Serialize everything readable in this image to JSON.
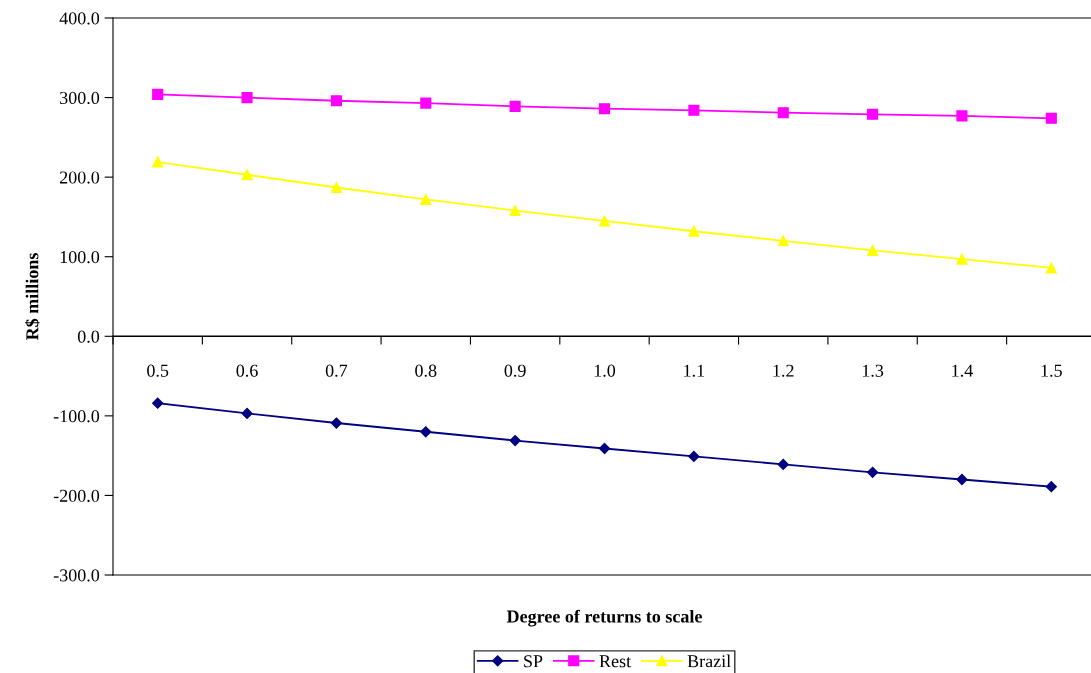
{
  "chart_data": {
    "type": "line",
    "xlabel": "Degree of returns to scale",
    "ylabel": "R$ millions",
    "categories": [
      "0.5",
      "0.6",
      "0.7",
      "0.8",
      "0.9",
      "1.0",
      "1.1",
      "1.2",
      "1.3",
      "1.4",
      "1.5"
    ],
    "series": [
      {
        "name": "SP",
        "color": "#000080",
        "marker": "diamond",
        "values": [
          -84,
          -97,
          -109,
          -120,
          -131,
          -141,
          -151,
          -161,
          -171,
          -180,
          -189
        ]
      },
      {
        "name": "Rest",
        "color": "#ff00ff",
        "marker": "square",
        "values": [
          304,
          300,
          296,
          293,
          289,
          286,
          284,
          281,
          279,
          277,
          274
        ]
      },
      {
        "name": "Brazil",
        "color": "#ffff00",
        "marker": "triangle",
        "values": [
          219,
          203,
          187,
          172,
          158,
          145,
          132,
          120,
          108,
          97,
          86
        ]
      }
    ],
    "ylim": [
      -300,
      400
    ],
    "yticks": [
      {
        "value": -300,
        "label": "-300.0"
      },
      {
        "value": -200,
        "label": "-200.0"
      },
      {
        "value": -100,
        "label": "-100.0"
      },
      {
        "value": 0,
        "label": "0.0"
      },
      {
        "value": 100,
        "label": "100.0"
      },
      {
        "value": 200,
        "label": "200.0"
      },
      {
        "value": 300,
        "label": "300.0"
      },
      {
        "value": 400,
        "label": "400.0"
      }
    ],
    "grid": false,
    "legend": "bottom",
    "line_style": "solid"
  }
}
